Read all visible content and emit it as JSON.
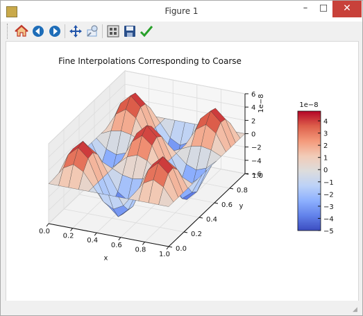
{
  "window": {
    "title": "Figure 1",
    "minimize": "–",
    "maximize": "□",
    "close": "✕"
  },
  "toolbar": {
    "items": [
      {
        "name": "home-icon",
        "color": "#c0392b"
      },
      {
        "name": "back-icon",
        "color": "#1e6db8"
      },
      {
        "name": "forward-icon",
        "color": "#1e6db8"
      },
      {
        "name": "pan-icon",
        "color": "#2255aa"
      },
      {
        "name": "zoom-icon",
        "color": "#7aa4d6"
      },
      {
        "name": "subplots-icon",
        "color": "#555555"
      },
      {
        "name": "save-icon",
        "color": "#2a4f8a"
      },
      {
        "name": "edit-axes-icon",
        "color": "#28a02a"
      }
    ]
  },
  "chart_data": {
    "type": "surface3d",
    "title": "Fine Interpolations Corresponding to Coarse",
    "xlabel": "x",
    "ylabel": "y",
    "zlabel": "",
    "z_scale_label": "1e−8",
    "xlim": [
      0,
      1
    ],
    "ylim": [
      0,
      1
    ],
    "zlim": [
      -6,
      6
    ],
    "x_ticks": [
      "0.0",
      "0.2",
      "0.4",
      "0.6",
      "0.8",
      "1.0"
    ],
    "y_ticks": [
      "0.0",
      "0.2",
      "0.4",
      "0.6",
      "0.8",
      "1.0"
    ],
    "z_ticks": [
      "−6",
      "−4",
      "−2",
      "0",
      "2",
      "4",
      "6"
    ],
    "grid": true,
    "colormap": "coolwarm",
    "colorbar": {
      "range": [
        -5,
        4.8
      ],
      "scale_label": "1e−8",
      "ticks": [
        "4",
        "3",
        "2",
        "1",
        "0",
        "−1",
        "−2",
        "−3",
        "−4",
        "−5"
      ],
      "colors": [
        "#b40426",
        "#dd5f4b",
        "#f49a7b",
        "#f2cbb7",
        "#dddcdc",
        "#bcd2f7",
        "#8db0fe",
        "#6282ea",
        "#3b4cc0"
      ]
    },
    "surface": {
      "function": "z = 5 * sin(3*pi*x) * sin(3*pi*y)",
      "amplitude": 5,
      "x_grid_count": 13,
      "y_grid_count": 17
    }
  }
}
